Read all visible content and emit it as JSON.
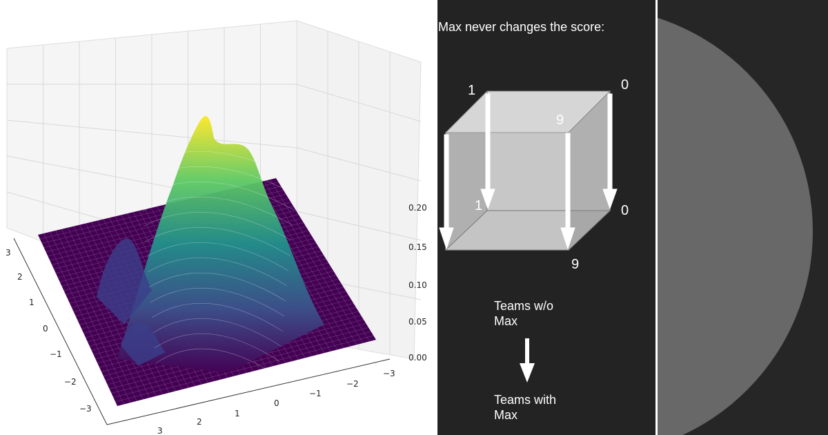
{
  "left_plot": {
    "z_axis_ticks": [
      "0.20",
      "0.15",
      "0.10",
      "0.05",
      "0.00"
    ],
    "left_axis_ticks": [
      "3",
      "2",
      "1",
      "0",
      "−1",
      "−2",
      "−3"
    ],
    "bottom_axis_ticks": [
      "3",
      "2",
      "1",
      "0",
      "−1",
      "−2",
      "−3"
    ],
    "colormap": [
      "#440154",
      "#3b528b",
      "#21918c",
      "#5ec962",
      "#fde725"
    ]
  },
  "middle_panel": {
    "title": "Max never changes the score:",
    "cube_corners": {
      "back_top_left": "1",
      "back_top_right": "0",
      "front_top_right": "9",
      "back_bottom_left": "1",
      "back_bottom_right": "0",
      "front_bottom_right": "9"
    },
    "legend_without": "Teams w/o Max",
    "legend_with": "Teams with Max"
  },
  "right_panel": {
    "circle_color": "#686868"
  }
}
